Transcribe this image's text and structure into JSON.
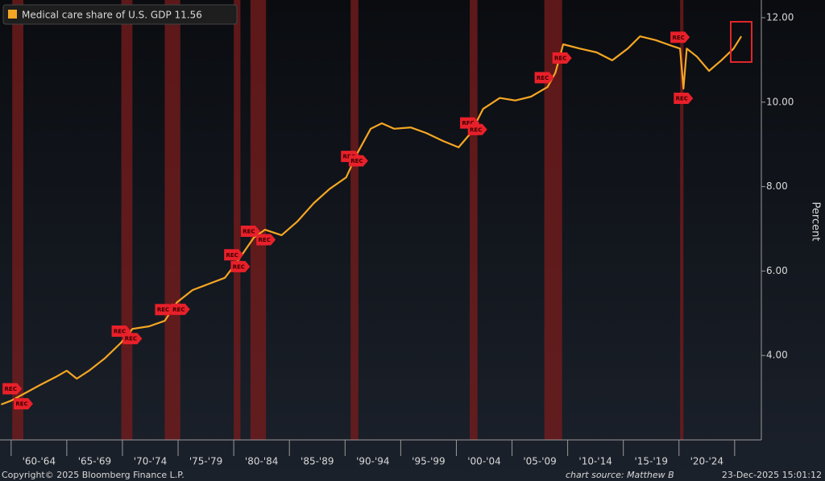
{
  "chart_data": {
    "type": "line",
    "x": [
      1959.1,
      1960,
      1961.2,
      1962.6,
      1964,
      1965,
      1965.9,
      1967,
      1968.4,
      1969.9,
      1970.9,
      1972.4,
      1973.8,
      1974.9,
      1976.3,
      1977.8,
      1979.2,
      1980.3,
      1981.8,
      1982.8,
      1984.3,
      1985.7,
      1987.2,
      1988.6,
      1990.1,
      1991.1,
      1992.3,
      1993.3,
      1994.4,
      1995.9,
      1997.3,
      1998.8,
      2000.2,
      2001.3,
      2002.4,
      2003.9,
      2005.3,
      2006.7,
      2008.2,
      2008.9,
      2009.6,
      2011.1,
      2012.6,
      2014,
      2015.4,
      2016.5,
      2017.9,
      2019.4,
      2020.1,
      2020.4,
      2020.7,
      2021.6,
      2022.7,
      2023.8,
      2024.9,
      2025.6
    ],
    "series": [
      {
        "name": "Medical care share of U.S. GDP",
        "color": "#f5a623",
        "last_value": 11.56,
        "values": [
          2.84,
          2.93,
          3.1,
          3.3,
          3.49,
          3.64,
          3.45,
          3.64,
          3.93,
          4.31,
          4.63,
          4.69,
          4.82,
          5.26,
          5.55,
          5.7,
          5.84,
          6.22,
          6.79,
          6.98,
          6.85,
          7.17,
          7.61,
          7.94,
          8.22,
          8.79,
          9.37,
          9.5,
          9.37,
          9.4,
          9.27,
          9.08,
          8.93,
          9.27,
          9.84,
          10.1,
          10.04,
          10.13,
          10.36,
          10.7,
          11.37,
          11.27,
          11.18,
          10.99,
          11.27,
          11.56,
          11.47,
          11.33,
          11.27,
          10.32,
          11.27,
          11.08,
          10.74,
          10.99,
          11.27,
          11.56
        ]
      }
    ],
    "recessions": [
      {
        "start": 1960.1,
        "end": 1961.1
      },
      {
        "start": 1969.9,
        "end": 1970.9
      },
      {
        "start": 1973.8,
        "end": 1975.2
      },
      {
        "start": 1980.0,
        "end": 1980.6
      },
      {
        "start": 1981.5,
        "end": 1982.9
      },
      {
        "start": 1990.5,
        "end": 1991.2
      },
      {
        "start": 2001.2,
        "end": 2001.9
      },
      {
        "start": 2007.9,
        "end": 2009.5
      },
      {
        "start": 2020.1,
        "end": 2020.4
      }
    ],
    "recession_marker_label": "REC",
    "xlim": [
      1959,
      2027.4
    ],
    "xticks": [
      1960,
      1965,
      1970,
      1975,
      1980,
      1985,
      1990,
      1995,
      2000,
      2005,
      2010,
      2015,
      2020,
      2025
    ],
    "xtick_labels": [
      "'60-'64",
      "'65-'69",
      "'70-'74",
      "'75-'79",
      "'80-'84",
      "'85-'89",
      "'90-'94",
      "'95-'99",
      "'00-'04",
      "'05-'09",
      "'10-'14",
      "'15-'19",
      "'20-'24"
    ],
    "ylim": [
      2,
      12.42
    ],
    "yticks": [
      {
        "value": 4,
        "label": "4.00"
      },
      {
        "value": 6,
        "label": "6.00"
      },
      {
        "value": 8,
        "label": "8.00"
      },
      {
        "value": 10,
        "label": "10.00"
      },
      {
        "value": 12,
        "label": "12.00"
      }
    ],
    "ylabel": "Percent",
    "footer_left": "Copyright© 2025 Bloomberg Finance L.P.",
    "footer_source": "chart source: Matthew B",
    "footer_date": "23-Dec-2025 15:01:12"
  }
}
